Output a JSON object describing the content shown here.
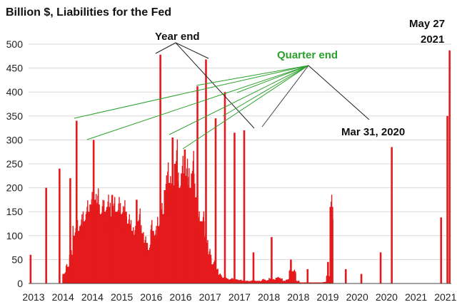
{
  "chart_data": {
    "type": "bar",
    "title": "Billion $, Liabilities for the Fed",
    "ylim": [
      0,
      500
    ],
    "y_ticks": [
      0,
      50,
      100,
      150,
      200,
      250,
      300,
      350,
      400,
      450,
      500
    ],
    "x_tick_labels": [
      "2013",
      "2014",
      "2014",
      "2015",
      "2016",
      "2016",
      "2017",
      "2017",
      "2018",
      "2018",
      "2019",
      "2020",
      "2020",
      "2021",
      "2021"
    ],
    "x_range": [
      2013.5,
      2021.45
    ],
    "grid": "horizontal",
    "bar_color": "#e41a1c",
    "grid_color": "#d9d9d9",
    "quarter_color": "#2ca02c",
    "annotations": {
      "year_end": "Year end",
      "quarter_end": "Quarter end",
      "mar_2020": "Mar 31, 2020",
      "may_2021_line1": "May 27",
      "may_2021_line2": "2021"
    },
    "x": [
      2013.5,
      2013.6,
      2013.7,
      2013.8,
      2013.9,
      2014.0,
      2014.1,
      2014.2,
      2014.3,
      2014.4,
      2014.5,
      2014.6,
      2014.7,
      2014.8,
      2014.9,
      2015.0,
      2015.1,
      2015.2,
      2015.3,
      2015.4,
      2015.5,
      2015.6,
      2015.7,
      2015.8,
      2015.9,
      2016.0,
      2016.1,
      2016.2,
      2016.3,
      2016.4,
      2016.5,
      2016.6,
      2016.7,
      2016.8,
      2016.9,
      2017.0,
      2017.1,
      2017.2,
      2017.3,
      2017.4,
      2017.5,
      2017.6,
      2017.7,
      2017.8,
      2017.9,
      2018.0,
      2018.1,
      2018.2,
      2018.3,
      2018.4,
      2018.5,
      2018.6,
      2018.7,
      2018.8,
      2018.9,
      2019.0,
      2019.1,
      2019.2,
      2019.3,
      2019.4,
      2019.5,
      2019.6,
      2019.7,
      2019.8,
      2019.9,
      2020.0,
      2020.1,
      2020.2,
      2020.3,
      2020.4,
      2020.5,
      2020.6,
      2020.7,
      2020.8,
      2020.9,
      2021.0,
      2021.1,
      2021.2,
      2021.3,
      2021.4
    ],
    "values": [
      20,
      35,
      60,
      100,
      110,
      120,
      130,
      150,
      165,
      175,
      165,
      145,
      150,
      160,
      140,
      150,
      150,
      145,
      150,
      125,
      110,
      100,
      130,
      105,
      85,
      70,
      110,
      100,
      120,
      145,
      195,
      210,
      205,
      250,
      200,
      230,
      225,
      200,
      230,
      180,
      130,
      130,
      85,
      60,
      40,
      30,
      18,
      12,
      10,
      8,
      10,
      8,
      7,
      5,
      5,
      5,
      6,
      5,
      5,
      8,
      6,
      10,
      8,
      12,
      10,
      5,
      8,
      25,
      25,
      5,
      2,
      2,
      2,
      2,
      2,
      2,
      2,
      3,
      15,
      160
    ],
    "spikes": [
      {
        "x": 2013.48,
        "value": 60
      },
      {
        "x": 2013.9,
        "value": 200
      },
      {
        "x": 2014.26,
        "value": 240
      },
      {
        "x": 2014.55,
        "value": 220
      },
      {
        "x": 2014.72,
        "value": 340
      },
      {
        "x": 2015.18,
        "value": 300
      },
      {
        "x": 2015.68,
        "value": 185
      },
      {
        "x": 2016.34,
        "value": 175
      },
      {
        "x": 2016.98,
        "value": 478
      },
      {
        "x": 2017.31,
        "value": 305
      },
      {
        "x": 2017.64,
        "value": 280
      },
      {
        "x": 2017.98,
        "value": 412
      },
      {
        "x": 2018.21,
        "value": 468
      },
      {
        "x": 2018.47,
        "value": 345
      },
      {
        "x": 2018.72,
        "value": 400
      },
      {
        "x": 2018.98,
        "value": 315
      },
      {
        "x": 2019.24,
        "value": 320
      },
      {
        "x": 2019.49,
        "value": 65
      },
      {
        "x": 2019.98,
        "value": 97
      },
      {
        "x": 2020.5,
        "value": 50
      },
      {
        "x": 2020.95,
        "value": 30
      },
      {
        "x": 2021.5,
        "value": 45
      },
      {
        "x": 2021.98,
        "value": 30
      },
      {
        "x": 2022.4,
        "value": 20
      },
      {
        "x": 2022.92,
        "value": 65
      },
      {
        "x": 2023.22,
        "value": 285
      },
      {
        "x": 2024.55,
        "value": 138
      },
      {
        "x": 2024.72,
        "value": 350
      },
      {
        "x": 2024.78,
        "value": 487
      }
    ]
  }
}
